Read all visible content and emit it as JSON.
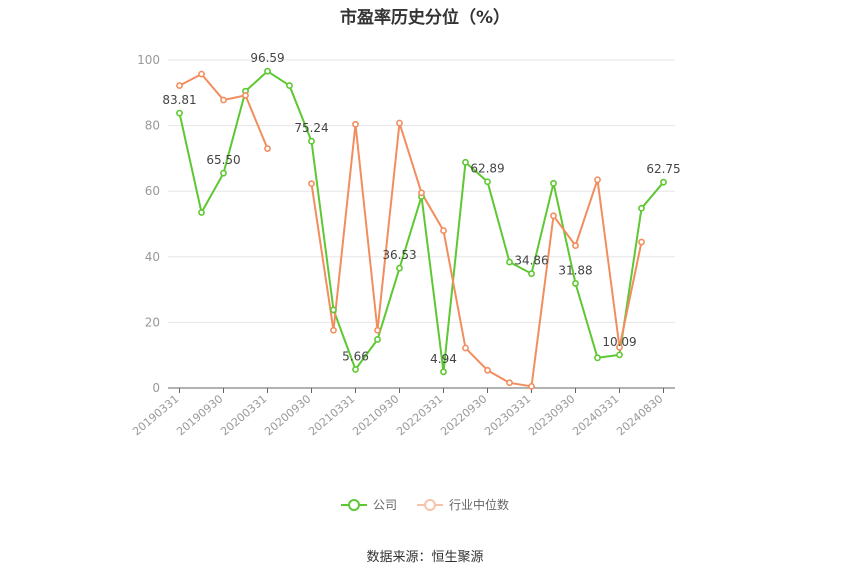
{
  "title": "市盈率历史分位（%）",
  "source": "数据来源：恒生聚源",
  "legend": {
    "company": "公司",
    "industry": "行业中位数"
  },
  "colors": {
    "company": "#5dc831",
    "industry": "#f28d5e",
    "axis": "#999999",
    "grid": "#e6e6e6"
  },
  "chart_data": {
    "type": "line",
    "x": [
      "20190331",
      "20190630",
      "20190930",
      "20191231",
      "20200331",
      "20200630",
      "20200930",
      "20201231",
      "20210331",
      "20210630",
      "20210930",
      "20211231",
      "20220331",
      "20220630",
      "20220930",
      "20221231",
      "20230331",
      "20230630",
      "20230930",
      "20231231",
      "20240331",
      "20240630",
      "20240830"
    ],
    "x_tick_labels": [
      "20190331",
      "20190930",
      "20200331",
      "20200930",
      "20210331",
      "20210930",
      "20220331",
      "20220930",
      "20230331",
      "20230930",
      "20240331",
      "20240830"
    ],
    "ylim": [
      0,
      100
    ],
    "y_ticks": [
      0,
      20,
      40,
      60,
      80,
      100
    ],
    "series": [
      {
        "name": "公司",
        "values": [
          83.81,
          53.5,
          65.5,
          90.5,
          96.59,
          92.2,
          75.24,
          23.8,
          5.66,
          14.8,
          36.53,
          58.4,
          4.94,
          68.8,
          62.89,
          38.4,
          34.86,
          62.4,
          31.88,
          9.2,
          10.09,
          54.8,
          62.75
        ]
      },
      {
        "name": "行业中位数",
        "values": [
          92.2,
          95.7,
          87.8,
          89.2,
          73.0,
          null,
          62.3,
          17.6,
          80.4,
          17.6,
          80.8,
          59.5,
          48.0,
          12.2,
          5.4,
          1.6,
          0.5,
          52.5,
          43.4,
          63.5,
          12.4,
          44.5,
          null
        ]
      }
    ],
    "data_labels": [
      {
        "series": 0,
        "index": 0,
        "text": "83.81"
      },
      {
        "series": 0,
        "index": 2,
        "text": "65.50"
      },
      {
        "series": 0,
        "index": 4,
        "text": "96.59"
      },
      {
        "series": 0,
        "index": 6,
        "text": "75.24"
      },
      {
        "series": 0,
        "index": 8,
        "text": "5.66"
      },
      {
        "series": 0,
        "index": 10,
        "text": "36.53"
      },
      {
        "series": 0,
        "index": 12,
        "text": "4.94"
      },
      {
        "series": 0,
        "index": 14,
        "text": "62.89"
      },
      {
        "series": 0,
        "index": 16,
        "text": "34.86"
      },
      {
        "series": 0,
        "index": 18,
        "text": "31.88"
      },
      {
        "series": 0,
        "index": 20,
        "text": "10.09"
      },
      {
        "series": 0,
        "index": 22,
        "text": "62.75"
      }
    ],
    "grid": true,
    "legend_position": "bottom"
  }
}
